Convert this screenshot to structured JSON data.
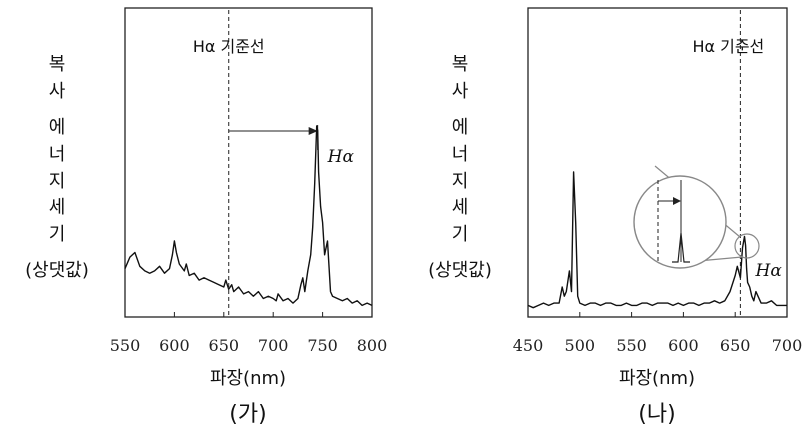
{
  "chart_data": [
    {
      "type": "line",
      "caption": "(가)",
      "xlabel": "파장(nm)",
      "ylabel": [
        "복",
        "사",
        "에",
        "너",
        "지",
        "세",
        "기",
        "(상댓값)"
      ],
      "xlim": [
        550,
        800
      ],
      "x_ticks": [
        "550",
        "600",
        "650",
        "700",
        "750",
        "800"
      ],
      "reference_line": {
        "label": "Hα 기준선",
        "x": 655
      },
      "peak": {
        "label": "Hα",
        "x": 745
      },
      "shift_arrow": {
        "from": 655,
        "to": 745
      },
      "series": [
        {
          "x": [
            550,
            555,
            560,
            565,
            570,
            575,
            580,
            585,
            590,
            595,
            598,
            600,
            602,
            605,
            610,
            612,
            615,
            620,
            625,
            630,
            635,
            640,
            645,
            650,
            652,
            655,
            658,
            660,
            665,
            670,
            675,
            680,
            685,
            690,
            695,
            700,
            703,
            705,
            710,
            715,
            720,
            725,
            728,
            730,
            732,
            735,
            738,
            740,
            742,
            744,
            745,
            746,
            748,
            750,
            752,
            755,
            758,
            760,
            765,
            770,
            775,
            780,
            785,
            790,
            795,
            800
          ],
          "y": [
            0.18,
            0.23,
            0.25,
            0.19,
            0.17,
            0.16,
            0.17,
            0.19,
            0.16,
            0.18,
            0.24,
            0.3,
            0.25,
            0.2,
            0.17,
            0.2,
            0.15,
            0.16,
            0.13,
            0.14,
            0.13,
            0.12,
            0.11,
            0.1,
            0.13,
            0.09,
            0.11,
            0.08,
            0.1,
            0.07,
            0.08,
            0.06,
            0.08,
            0.05,
            0.06,
            0.05,
            0.04,
            0.07,
            0.04,
            0.05,
            0.03,
            0.05,
            0.11,
            0.14,
            0.08,
            0.17,
            0.24,
            0.36,
            0.55,
            0.8,
            0.78,
            0.6,
            0.45,
            0.38,
            0.24,
            0.3,
            0.08,
            0.06,
            0.05,
            0.04,
            0.05,
            0.03,
            0.04,
            0.02,
            0.03,
            0.02
          ]
        }
      ]
    },
    {
      "type": "line",
      "caption": "(나)",
      "xlabel": "파장(nm)",
      "ylabel": [
        "복",
        "사",
        "에",
        "너",
        "지",
        "세",
        "기",
        "(상댓값)"
      ],
      "xlim": [
        450,
        700
      ],
      "x_ticks": [
        "450",
        "500",
        "550",
        "600",
        "650",
        "700"
      ],
      "reference_line": {
        "label": "Hα 기준선",
        "x": 655
      },
      "peak": {
        "label": "Hα",
        "x": 660
      },
      "series": [
        {
          "x": [
            450,
            455,
            460,
            465,
            470,
            475,
            480,
            483,
            485,
            487,
            490,
            492,
            494,
            496,
            498,
            500,
            505,
            510,
            515,
            520,
            525,
            530,
            535,
            540,
            545,
            550,
            555,
            560,
            565,
            570,
            575,
            580,
            585,
            590,
            595,
            600,
            605,
            610,
            615,
            620,
            625,
            630,
            635,
            640,
            645,
            650,
            652,
            655,
            657,
            659,
            660,
            661,
            662,
            664,
            666,
            668,
            670,
            675,
            680,
            685,
            690,
            695,
            700
          ],
          "y": [
            0.02,
            0.01,
            0.02,
            0.03,
            0.02,
            0.03,
            0.03,
            0.1,
            0.06,
            0.08,
            0.17,
            0.08,
            0.6,
            0.38,
            0.06,
            0.03,
            0.02,
            0.03,
            0.03,
            0.02,
            0.03,
            0.03,
            0.02,
            0.02,
            0.03,
            0.02,
            0.02,
            0.03,
            0.03,
            0.02,
            0.03,
            0.03,
            0.03,
            0.02,
            0.03,
            0.02,
            0.03,
            0.03,
            0.02,
            0.03,
            0.03,
            0.04,
            0.03,
            0.04,
            0.08,
            0.15,
            0.19,
            0.14,
            0.27,
            0.32,
            0.28,
            0.18,
            0.12,
            0.1,
            0.06,
            0.04,
            0.08,
            0.03,
            0.03,
            0.04,
            0.02,
            0.02,
            0.02
          ]
        }
      ]
    }
  ]
}
